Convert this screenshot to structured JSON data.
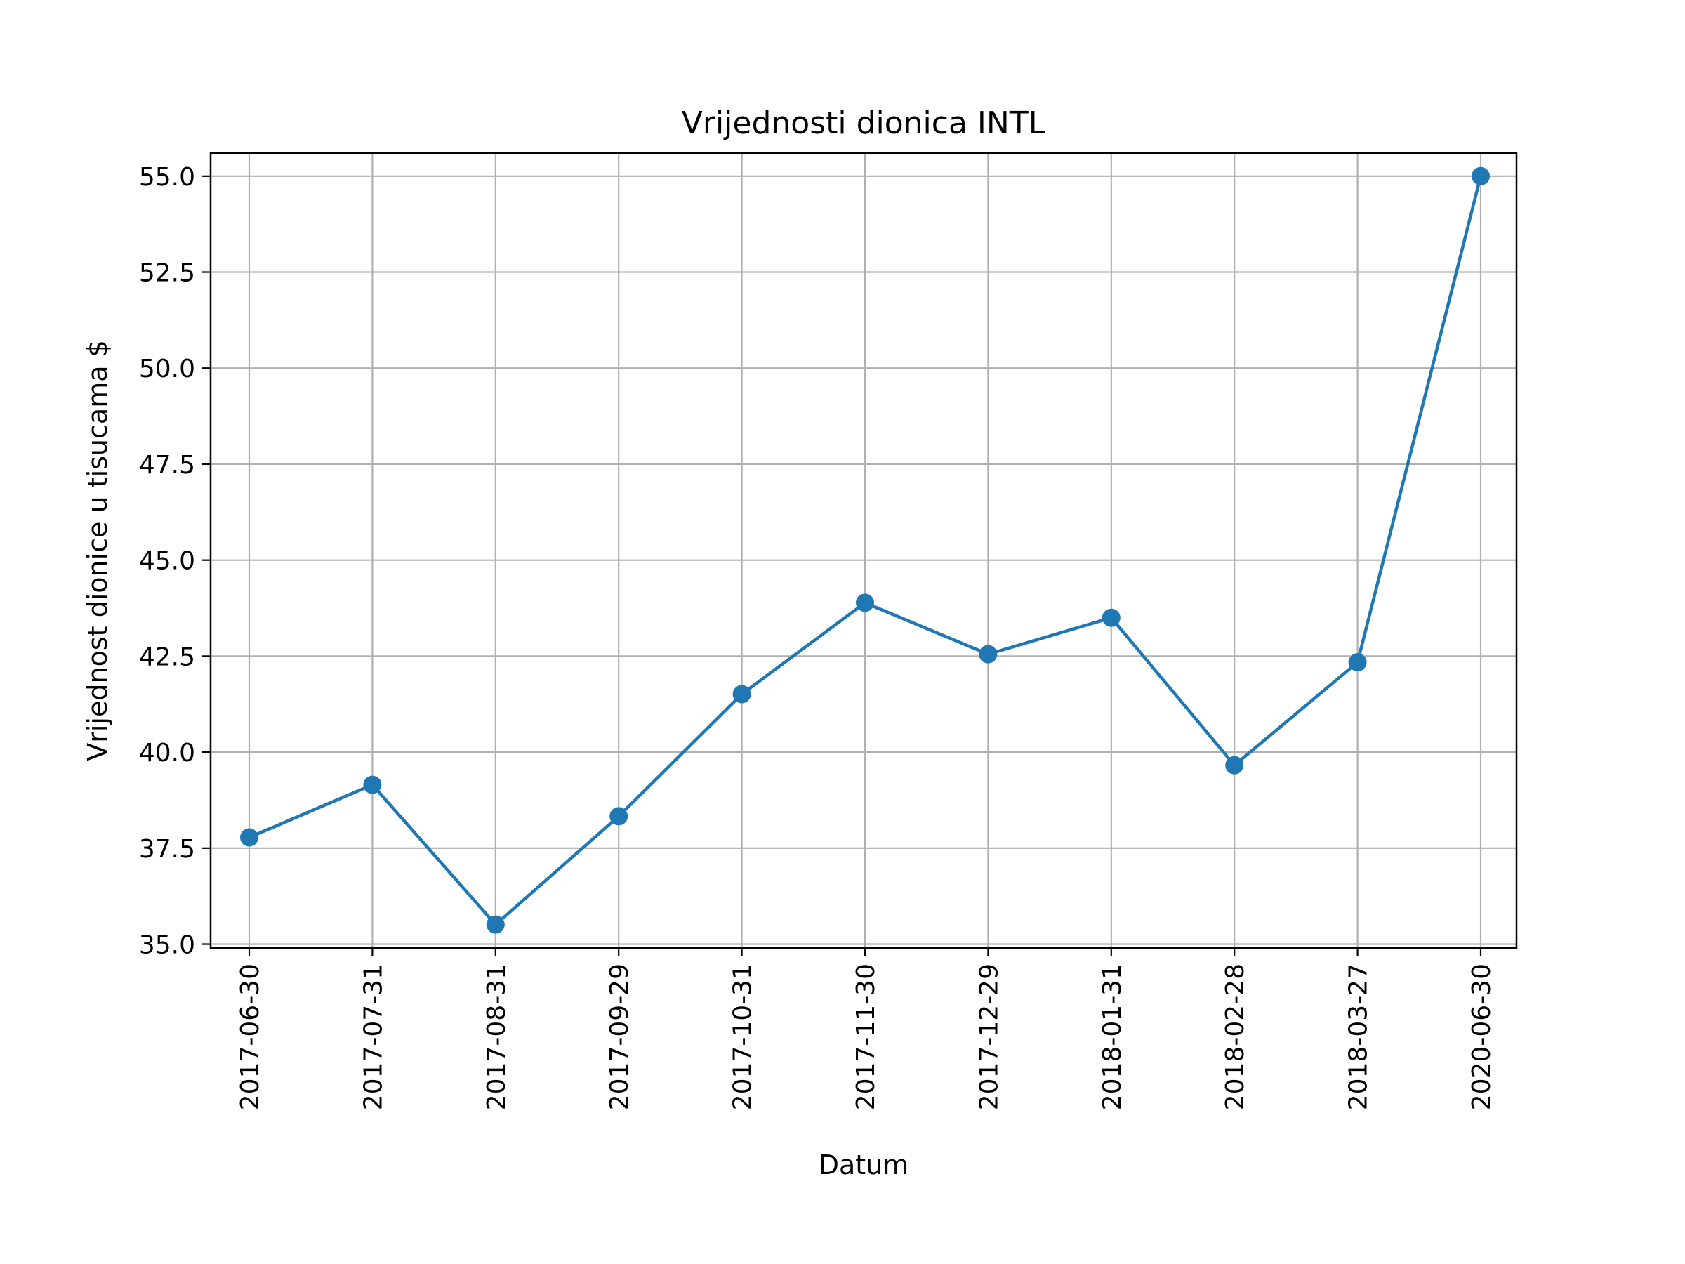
{
  "chart_data": {
    "type": "line",
    "title": "Vrijednosti dionica INTL",
    "xlabel": "Datum",
    "ylabel": "Vrijednost dionice u tisucama $",
    "categories": [
      "2017-06-30",
      "2017-07-31",
      "2017-08-31",
      "2017-09-29",
      "2017-10-31",
      "2017-11-30",
      "2017-12-29",
      "2018-01-31",
      "2018-02-28",
      "2018-03-27",
      "2020-06-30"
    ],
    "series": [
      {
        "values": [
          37.78,
          39.15,
          35.51,
          38.33,
          41.51,
          43.89,
          42.55,
          43.5,
          39.66,
          42.34,
          55.0
        ],
        "color": "#1f77b4",
        "marker": "circle"
      }
    ],
    "y_ticks": [
      "35.0",
      "37.5",
      "40.0",
      "42.5",
      "45.0",
      "47.5",
      "50.0",
      "52.5",
      "55.0"
    ],
    "ylim": [
      34.9,
      55.6
    ],
    "grid": true,
    "x_tick_rotation": 90
  }
}
